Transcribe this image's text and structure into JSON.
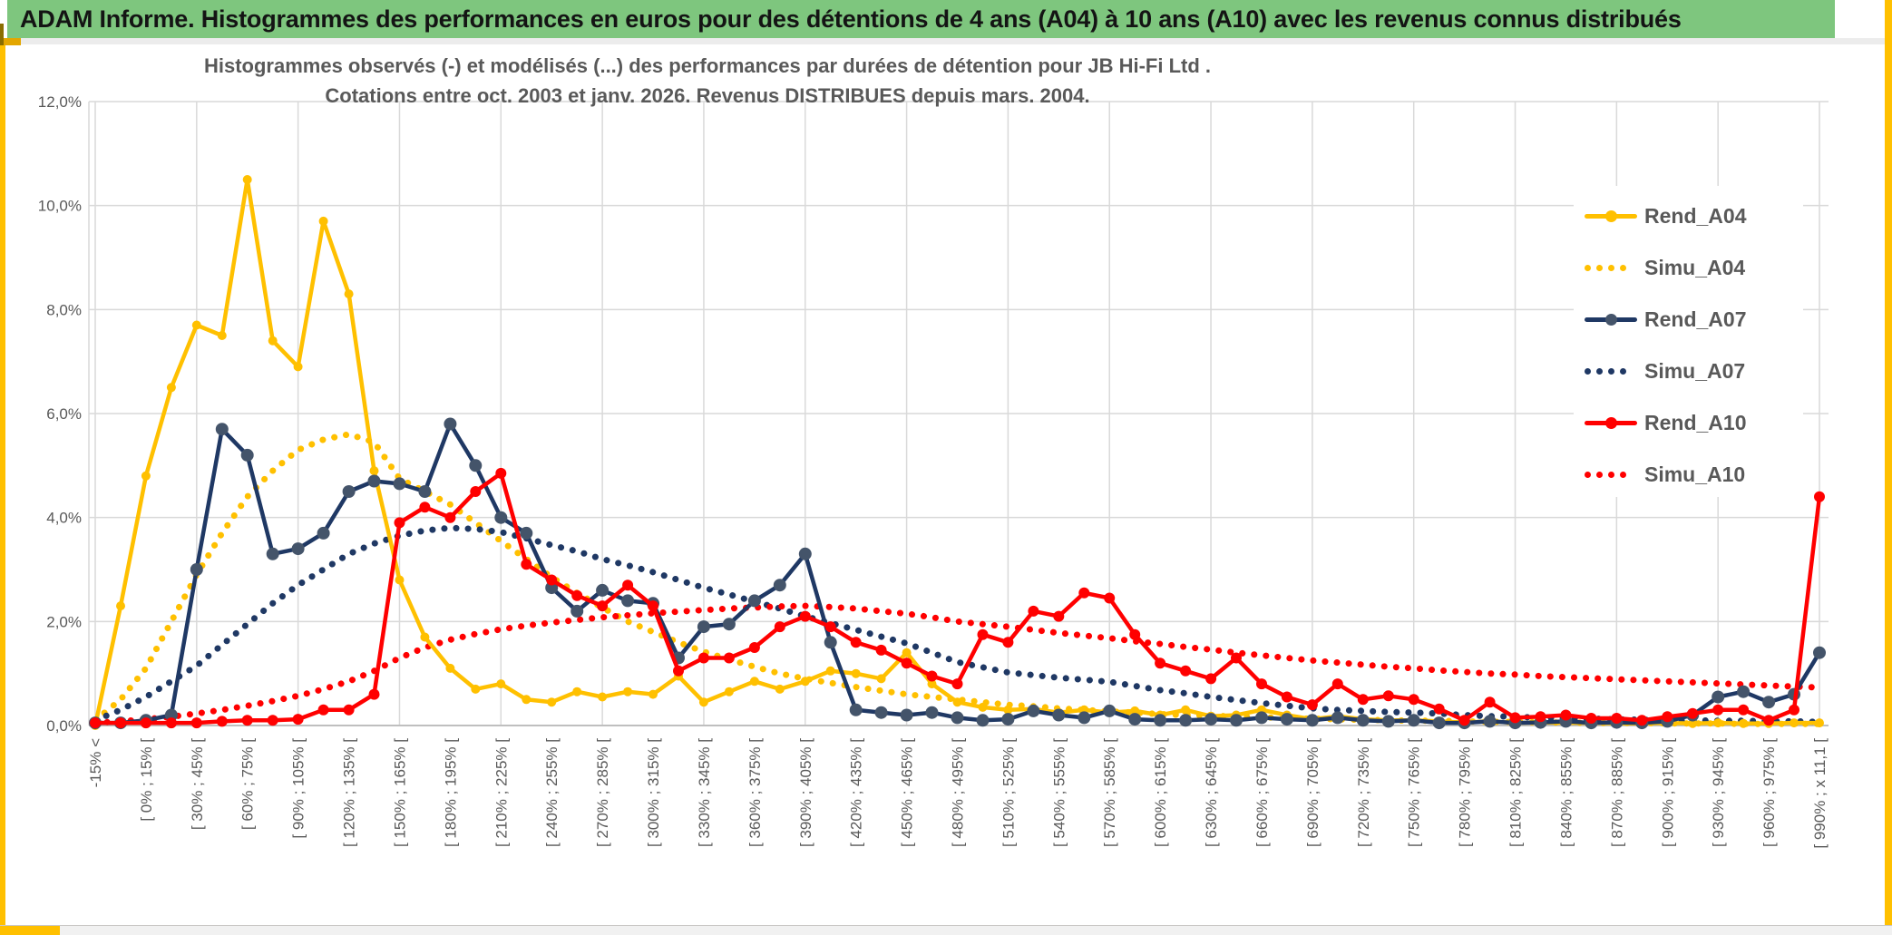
{
  "header": {
    "title": "ADAM Informe. Histogrammes des performances en euros pour des détentions de 4 ans (A04) à 10 ans (A10) avec les revenus connus distribués"
  },
  "chart_data": {
    "type": "line",
    "title_line1": "Histogrammes observés (-) et modélisés (...) des performances par durées de détention pour JB Hi-Fi Ltd .",
    "title_line2": "Cotations entre oct. 2003 et janv. 2026. Revenus DISTRIBUES depuis mars. 2004.",
    "grid": true,
    "legend_position": "right-inside",
    "colors": {
      "gold": "#FFC000",
      "navy": "#1F3864",
      "navy_marker": "#44546A",
      "red": "#FF0000",
      "gridline": "#D9D9D9",
      "axis_line": "#BFBFBF",
      "axis_text": "#595959",
      "title_text": "#595959",
      "header_green": "#7EC67E"
    },
    "y_axis": {
      "min": 0,
      "max": 12,
      "step": 2,
      "labels": [
        "0,0%",
        "2,0%",
        "4,0%",
        "6,0%",
        "8,0%",
        "10,0%",
        "12,0%"
      ]
    },
    "x_axis": {
      "label_every_n_bins": 2,
      "tick_labels": [
        "-15% <",
        "[ 0% ; 15% [",
        "[ 30% ; 45% [",
        "[ 60% ; 75% [",
        "[ 90% ; 105% [",
        "[ 120% ; 135% [",
        "[ 150% ; 165% [",
        "[ 180% ; 195% [",
        "[ 210% ; 225% [",
        "[ 240% ; 255% [",
        "[ 270% ; 285% [",
        "[ 300% ; 315% [",
        "[ 330% ; 345% [",
        "[ 360% ; 375% [",
        "[ 390% ; 405% [",
        "[ 420% ; 435% [",
        "[ 450% ; 465% [",
        "[ 480% ; 495% [",
        "[ 510% ; 525% [",
        "[ 540% ; 555% [",
        "[ 570% ; 585% [",
        "[ 600% ; 615% [",
        "[ 630% ; 645% [",
        "[ 660% ; 675% [",
        "[ 690% ; 705% [",
        "[ 720% ; 735% [",
        "[ 750% ; 765% [",
        "[ 780% ; 795% [",
        "[ 810% ; 825% [",
        "[ 840% ; 855% [",
        "[ 870% ; 885% [",
        "[ 900% ; 915% [",
        "[ 930% ; 945% [",
        "[ 960% ; 975% [",
        "[ 990% ; x 11,1 ["
      ]
    },
    "series": [
      {
        "name": "Rend_A04",
        "style": "solid",
        "color": "#FFC000",
        "marker": "#FFC000",
        "marker_r": 5,
        "values": [
          0.0,
          2.3,
          4.8,
          6.5,
          7.7,
          7.5,
          10.5,
          7.4,
          6.9,
          9.7,
          8.3,
          4.9,
          2.8,
          1.7,
          1.1,
          0.7,
          0.8,
          0.5,
          0.45,
          0.65,
          0.55,
          0.65,
          0.6,
          0.95,
          0.45,
          0.65,
          0.85,
          0.7,
          0.85,
          1.05,
          1.0,
          0.9,
          1.4,
          0.8,
          0.45,
          0.35,
          0.3,
          0.32,
          0.25,
          0.3,
          0.25,
          0.28,
          0.2,
          0.3,
          0.18,
          0.2,
          0.3,
          0.2,
          0.12,
          0.18,
          0.12,
          0.1,
          0.1,
          0.08,
          0.06,
          0.08,
          0.05,
          0.06,
          0.05,
          0.05,
          0.04,
          0.04,
          0.05,
          0.04,
          0.05,
          0.04,
          0.04,
          0.05,
          0.05
        ]
      },
      {
        "name": "Simu_A04",
        "style": "dotted",
        "color": "#FFC000",
        "values": [
          0.1,
          0.5,
          1.1,
          2.0,
          2.9,
          3.7,
          4.4,
          4.9,
          5.3,
          5.5,
          5.6,
          5.45,
          4.75,
          4.5,
          4.25,
          3.9,
          3.55,
          3.2,
          2.85,
          2.55,
          2.27,
          2.0,
          1.8,
          1.6,
          1.42,
          1.27,
          1.13,
          1.0,
          0.9,
          0.82,
          0.74,
          0.67,
          0.6,
          0.55,
          0.5,
          0.45,
          0.4,
          0.37,
          0.33,
          0.3,
          0.27,
          0.25,
          0.22,
          0.2,
          0.19,
          0.17,
          0.16,
          0.14,
          0.13,
          0.12,
          0.11,
          0.1,
          0.09,
          0.09,
          0.08,
          0.07,
          0.07,
          0.06,
          0.06,
          0.05,
          0.05,
          0.05,
          0.04,
          0.04,
          0.04,
          0.03,
          0.03,
          0.03,
          0.03
        ]
      },
      {
        "name": "Rend_A07",
        "style": "solid",
        "color": "#1F3864",
        "marker": "#44546A",
        "marker_r": 7,
        "values": [
          0.05,
          0.05,
          0.1,
          0.2,
          3.0,
          5.7,
          5.2,
          3.3,
          3.4,
          3.7,
          4.5,
          4.7,
          4.65,
          4.5,
          5.8,
          5.0,
          4.0,
          3.7,
          2.65,
          2.2,
          2.6,
          2.4,
          2.35,
          1.3,
          1.9,
          1.95,
          2.4,
          2.7,
          3.3,
          1.6,
          0.3,
          0.25,
          0.2,
          0.25,
          0.15,
          0.1,
          0.12,
          0.28,
          0.2,
          0.15,
          0.28,
          0.12,
          0.1,
          0.1,
          0.12,
          0.1,
          0.15,
          0.12,
          0.1,
          0.15,
          0.1,
          0.08,
          0.1,
          0.05,
          0.05,
          0.08,
          0.05,
          0.06,
          0.08,
          0.05,
          0.06,
          0.05,
          0.08,
          0.2,
          0.55,
          0.65,
          0.45,
          0.6,
          1.4
        ]
      },
      {
        "name": "Simu_A07",
        "style": "dotted",
        "color": "#1F3864",
        "values": [
          0.1,
          0.3,
          0.55,
          0.85,
          1.15,
          1.55,
          1.95,
          2.35,
          2.7,
          3.0,
          3.3,
          3.5,
          3.65,
          3.75,
          3.8,
          3.78,
          3.72,
          3.6,
          3.47,
          3.35,
          3.2,
          3.08,
          2.95,
          2.8,
          2.65,
          2.52,
          2.38,
          2.25,
          2.1,
          1.97,
          1.84,
          1.71,
          1.58,
          1.4,
          1.22,
          1.12,
          1.02,
          0.97,
          0.92,
          0.88,
          0.84,
          0.76,
          0.68,
          0.62,
          0.55,
          0.49,
          0.43,
          0.38,
          0.33,
          0.3,
          0.28,
          0.26,
          0.25,
          0.23,
          0.2,
          0.18,
          0.17,
          0.15,
          0.14,
          0.13,
          0.12,
          0.11,
          0.1,
          0.1,
          0.09,
          0.09,
          0.08,
          0.08,
          0.07
        ]
      },
      {
        "name": "Rend_A10",
        "style": "solid",
        "color": "#FF0000",
        "marker": "#FF0000",
        "marker_r": 6,
        "values": [
          0.05,
          0.05,
          0.05,
          0.05,
          0.05,
          0.08,
          0.1,
          0.1,
          0.12,
          0.3,
          0.3,
          0.6,
          3.9,
          4.2,
          4.0,
          4.5,
          4.85,
          3.1,
          2.8,
          2.5,
          2.3,
          2.7,
          2.3,
          1.05,
          1.3,
          1.3,
          1.5,
          1.9,
          2.1,
          1.9,
          1.6,
          1.45,
          1.2,
          0.95,
          0.8,
          1.75,
          1.6,
          2.2,
          2.1,
          2.55,
          2.45,
          1.75,
          1.2,
          1.05,
          0.9,
          1.3,
          0.8,
          0.55,
          0.4,
          0.8,
          0.5,
          0.57,
          0.5,
          0.32,
          0.1,
          0.45,
          0.15,
          0.17,
          0.2,
          0.14,
          0.14,
          0.1,
          0.17,
          0.23,
          0.3,
          0.3,
          0.1,
          0.3,
          4.4
        ]
      },
      {
        "name": "Simu_A10",
        "style": "dotted",
        "color": "#FF0000",
        "values": [
          0.05,
          0.08,
          0.12,
          0.17,
          0.23,
          0.3,
          0.38,
          0.47,
          0.57,
          0.7,
          0.85,
          1.05,
          1.3,
          1.5,
          1.65,
          1.76,
          1.85,
          1.92,
          1.98,
          2.03,
          2.08,
          2.12,
          2.16,
          2.19,
          2.22,
          2.25,
          2.27,
          2.29,
          2.3,
          2.28,
          2.25,
          2.2,
          2.15,
          2.08,
          2.0,
          1.95,
          1.9,
          1.84,
          1.78,
          1.73,
          1.68,
          1.62,
          1.57,
          1.51,
          1.46,
          1.4,
          1.35,
          1.3,
          1.25,
          1.21,
          1.17,
          1.13,
          1.1,
          1.06,
          1.03,
          1.0,
          0.98,
          0.95,
          0.93,
          0.91,
          0.89,
          0.87,
          0.85,
          0.83,
          0.81,
          0.79,
          0.77,
          0.75,
          0.73
        ]
      }
    ],
    "legend": [
      "Rend_A04",
      "Simu_A04",
      "Rend_A07",
      "Simu_A07",
      "Rend_A10",
      "Simu_A10"
    ]
  }
}
